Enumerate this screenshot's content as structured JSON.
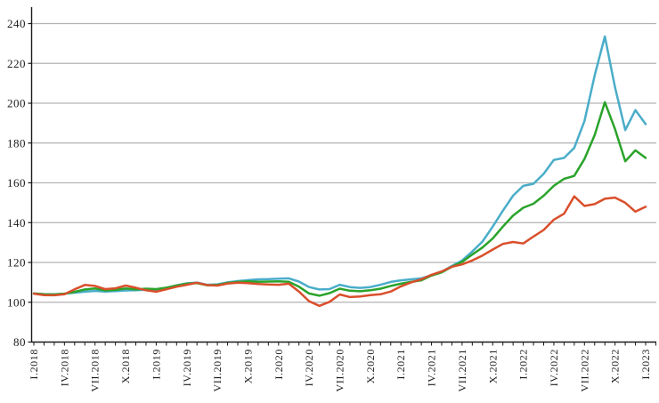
{
  "chart_data": {
    "type": "line",
    "title": "",
    "legend": "none",
    "grid": "horizontal",
    "x_axis": {
      "first_month": "I.2018",
      "last_month": "I.2023",
      "months_total": 61,
      "label_every_n_months": 3,
      "tick_labels_shown": [
        "I.2018",
        "IV.2018",
        "VII.2018",
        "X.2018",
        "I.2019",
        "IV.2019",
        "VII.2019",
        "X.2019",
        "I.2020",
        "IV.2020",
        "VII.2020",
        "X.2020",
        "I.2021",
        "IV.2021",
        "VII.2021",
        "X.2021",
        "I.2022",
        "IV.2022",
        "VII.2022",
        "X.2022",
        "I.2023"
      ]
    },
    "y_axis": {
      "min": 80,
      "max": 240,
      "step": 20,
      "tick_labels": [
        "80",
        "100",
        "120",
        "140",
        "160",
        "180",
        "200",
        "220",
        "240"
      ]
    },
    "colors": {
      "grid": "#b3b3b3",
      "axis": "#1a1a1a",
      "red_series": "#d94f2b",
      "green_series": "#2aa32a",
      "blue_series": "#4aadc9"
    },
    "series": [
      {
        "name": "blue-series",
        "color": "#4aadc9",
        "values": [
          104.4,
          104.1,
          104.0,
          104.3,
          104.8,
          105.3,
          105.7,
          105.4,
          105.6,
          105.9,
          106.0,
          106.3,
          106.5,
          107.2,
          108.5,
          109.5,
          109.9,
          108.8,
          109.0,
          110.0,
          110.6,
          111.1,
          111.5,
          111.6,
          111.8,
          112.0,
          110.4,
          107.6,
          106.4,
          106.6,
          108.8,
          107.6,
          107.2,
          107.6,
          108.8,
          110.2,
          111.0,
          111.5,
          112.0,
          113.6,
          115.3,
          118.2,
          121.0,
          125.5,
          130.5,
          138.0,
          146.0,
          153.5,
          158.5,
          159.5,
          164.5,
          171.5,
          172.5,
          177.5,
          191.0,
          214.0,
          233.5,
          208.0,
          186.5,
          196.5,
          189.5
        ]
      },
      {
        "name": "green-series",
        "color": "#2aa32a",
        "values": [
          104.4,
          104.0,
          103.9,
          104.3,
          105.2,
          106.4,
          106.9,
          105.9,
          106.2,
          106.9,
          106.4,
          106.8,
          106.6,
          107.3,
          108.4,
          109.3,
          109.6,
          108.5,
          108.7,
          109.7,
          110.2,
          110.5,
          110.3,
          110.4,
          110.5,
          110.3,
          107.8,
          104.4,
          103.3,
          104.6,
          106.8,
          105.8,
          105.5,
          106.0,
          106.8,
          108.2,
          109.3,
          110.2,
          111.0,
          113.4,
          115.0,
          117.8,
          120.3,
          124.0,
          127.5,
          132.0,
          138.0,
          143.5,
          147.5,
          149.5,
          153.5,
          158.5,
          162.0,
          163.5,
          172.0,
          184.0,
          200.5,
          187.0,
          170.8,
          176.3,
          172.5
        ]
      },
      {
        "name": "red-series",
        "color": "#d94f2b",
        "values": [
          104.3,
          103.6,
          103.5,
          104.0,
          106.5,
          108.7,
          108.2,
          106.6,
          107.0,
          108.4,
          107.3,
          106.0,
          105.3,
          106.5,
          107.8,
          108.8,
          109.8,
          108.6,
          108.4,
          109.4,
          109.8,
          109.6,
          109.2,
          108.9,
          108.8,
          109.3,
          105.4,
          100.5,
          98.2,
          100.2,
          103.9,
          102.6,
          102.9,
          103.6,
          104.0,
          105.4,
          108.0,
          110.0,
          111.5,
          113.8,
          115.5,
          117.8,
          119.0,
          121.0,
          123.5,
          126.5,
          129.3,
          130.3,
          129.5,
          133.0,
          136.3,
          141.5,
          144.5,
          153.2,
          148.4,
          149.3,
          152.0,
          152.6,
          150.0,
          145.5,
          148.0
        ]
      }
    ]
  }
}
